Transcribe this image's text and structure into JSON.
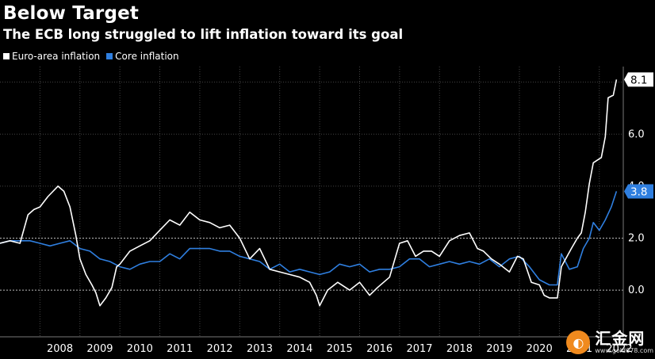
{
  "header": {
    "title": "Below Target",
    "subtitle": "The ECB long struggled to lift inflation toward its goal"
  },
  "watermark": {
    "name": "汇金网",
    "url": "www.gold678.com"
  },
  "colors": {
    "headline": "#ffffff",
    "core": "#2f7fe0"
  },
  "chart_data": {
    "type": "line",
    "title": "Below Target",
    "subtitle": "The ECB long struggled to lift inflation toward its goal",
    "xlabel": "",
    "ylabel": "",
    "xlim": [
      2007.0,
      2022.6
    ],
    "ylim": [
      -1.4,
      8.6
    ],
    "x_ticks": [
      "2008",
      "2009",
      "2010",
      "2011",
      "2012",
      "2013",
      "2014",
      "2015",
      "2016",
      "2017",
      "2018",
      "2019",
      "2020",
      "2021",
      "2022"
    ],
    "y_ticks": [
      0.0,
      2.0,
      4.0,
      6.0
    ],
    "y_tick_labels": [
      "0.0",
      "2.0",
      "4.0",
      "6.0"
    ],
    "reference_lines": [
      2.0,
      0.0
    ],
    "legend": {
      "placement": "top-left"
    },
    "series": [
      {
        "name": "Euro-area inflation",
        "color": "#ffffff",
        "last_label": "8.1",
        "points": [
          [
            2007.0,
            1.8
          ],
          [
            2007.25,
            1.9
          ],
          [
            2007.5,
            1.8
          ],
          [
            2007.7,
            2.9
          ],
          [
            2007.85,
            3.1
          ],
          [
            2008.0,
            3.2
          ],
          [
            2008.2,
            3.6
          ],
          [
            2008.45,
            4.0
          ],
          [
            2008.6,
            3.8
          ],
          [
            2008.75,
            3.2
          ],
          [
            2008.9,
            2.1
          ],
          [
            2009.0,
            1.2
          ],
          [
            2009.15,
            0.6
          ],
          [
            2009.3,
            0.2
          ],
          [
            2009.4,
            -0.1
          ],
          [
            2009.5,
            -0.6
          ],
          [
            2009.65,
            -0.3
          ],
          [
            2009.8,
            0.1
          ],
          [
            2009.92,
            0.9
          ],
          [
            2010.0,
            1.0
          ],
          [
            2010.25,
            1.5
          ],
          [
            2010.5,
            1.7
          ],
          [
            2010.75,
            1.9
          ],
          [
            2011.0,
            2.3
          ],
          [
            2011.25,
            2.7
          ],
          [
            2011.5,
            2.5
          ],
          [
            2011.75,
            3.0
          ],
          [
            2012.0,
            2.7
          ],
          [
            2012.25,
            2.6
          ],
          [
            2012.5,
            2.4
          ],
          [
            2012.75,
            2.5
          ],
          [
            2013.0,
            2.0
          ],
          [
            2013.25,
            1.2
          ],
          [
            2013.5,
            1.6
          ],
          [
            2013.75,
            0.8
          ],
          [
            2014.0,
            0.7
          ],
          [
            2014.25,
            0.6
          ],
          [
            2014.5,
            0.5
          ],
          [
            2014.75,
            0.3
          ],
          [
            2014.92,
            -0.2
          ],
          [
            2015.0,
            -0.6
          ],
          [
            2015.2,
            0.0
          ],
          [
            2015.45,
            0.3
          ],
          [
            2015.75,
            0.0
          ],
          [
            2016.0,
            0.3
          ],
          [
            2016.25,
            -0.2
          ],
          [
            2016.45,
            0.1
          ],
          [
            2016.75,
            0.5
          ],
          [
            2017.0,
            1.8
          ],
          [
            2017.2,
            1.9
          ],
          [
            2017.4,
            1.3
          ],
          [
            2017.6,
            1.5
          ],
          [
            2017.8,
            1.5
          ],
          [
            2018.0,
            1.3
          ],
          [
            2018.25,
            1.9
          ],
          [
            2018.5,
            2.1
          ],
          [
            2018.75,
            2.2
          ],
          [
            2018.95,
            1.6
          ],
          [
            2019.1,
            1.5
          ],
          [
            2019.3,
            1.2
          ],
          [
            2019.5,
            1.0
          ],
          [
            2019.75,
            0.7
          ],
          [
            2019.95,
            1.3
          ],
          [
            2020.1,
            1.2
          ],
          [
            2020.3,
            0.3
          ],
          [
            2020.5,
            0.2
          ],
          [
            2020.62,
            -0.2
          ],
          [
            2020.75,
            -0.3
          ],
          [
            2020.95,
            -0.3
          ],
          [
            2021.05,
            0.9
          ],
          [
            2021.3,
            1.6
          ],
          [
            2021.45,
            2.0
          ],
          [
            2021.55,
            2.2
          ],
          [
            2021.65,
            3.0
          ],
          [
            2021.75,
            4.1
          ],
          [
            2021.85,
            4.9
          ],
          [
            2021.95,
            5.0
          ],
          [
            2022.05,
            5.1
          ],
          [
            2022.15,
            5.9
          ],
          [
            2022.22,
            7.4
          ],
          [
            2022.35,
            7.5
          ],
          [
            2022.43,
            8.1
          ]
        ]
      },
      {
        "name": "Core inflation",
        "color": "#2f7fe0",
        "last_label": "3.8",
        "points": [
          [
            2007.0,
            1.8
          ],
          [
            2007.25,
            1.9
          ],
          [
            2007.5,
            1.9
          ],
          [
            2007.75,
            1.9
          ],
          [
            2008.0,
            1.8
          ],
          [
            2008.25,
            1.7
          ],
          [
            2008.5,
            1.8
          ],
          [
            2008.75,
            1.9
          ],
          [
            2009.0,
            1.6
          ],
          [
            2009.25,
            1.5
          ],
          [
            2009.5,
            1.2
          ],
          [
            2009.75,
            1.1
          ],
          [
            2010.0,
            0.9
          ],
          [
            2010.25,
            0.8
          ],
          [
            2010.5,
            1.0
          ],
          [
            2010.75,
            1.1
          ],
          [
            2011.0,
            1.1
          ],
          [
            2011.25,
            1.4
          ],
          [
            2011.5,
            1.2
          ],
          [
            2011.75,
            1.6
          ],
          [
            2012.0,
            1.6
          ],
          [
            2012.25,
            1.6
          ],
          [
            2012.5,
            1.5
          ],
          [
            2012.75,
            1.5
          ],
          [
            2013.0,
            1.3
          ],
          [
            2013.25,
            1.2
          ],
          [
            2013.5,
            1.1
          ],
          [
            2013.75,
            0.8
          ],
          [
            2014.0,
            1.0
          ],
          [
            2014.25,
            0.7
          ],
          [
            2014.5,
            0.8
          ],
          [
            2014.75,
            0.7
          ],
          [
            2015.0,
            0.6
          ],
          [
            2015.25,
            0.7
          ],
          [
            2015.5,
            1.0
          ],
          [
            2015.75,
            0.9
          ],
          [
            2016.0,
            1.0
          ],
          [
            2016.25,
            0.7
          ],
          [
            2016.5,
            0.8
          ],
          [
            2016.75,
            0.8
          ],
          [
            2017.0,
            0.9
          ],
          [
            2017.25,
            1.2
          ],
          [
            2017.5,
            1.2
          ],
          [
            2017.75,
            0.9
          ],
          [
            2018.0,
            1.0
          ],
          [
            2018.25,
            1.1
          ],
          [
            2018.5,
            1.0
          ],
          [
            2018.75,
            1.1
          ],
          [
            2019.0,
            1.0
          ],
          [
            2019.25,
            1.2
          ],
          [
            2019.5,
            0.9
          ],
          [
            2019.75,
            1.2
          ],
          [
            2020.0,
            1.3
          ],
          [
            2020.25,
            0.9
          ],
          [
            2020.5,
            0.4
          ],
          [
            2020.75,
            0.2
          ],
          [
            2020.95,
            0.2
          ],
          [
            2021.05,
            1.4
          ],
          [
            2021.25,
            0.8
          ],
          [
            2021.45,
            0.9
          ],
          [
            2021.6,
            1.6
          ],
          [
            2021.75,
            2.0
          ],
          [
            2021.85,
            2.6
          ],
          [
            2022.0,
            2.3
          ],
          [
            2022.15,
            2.7
          ],
          [
            2022.3,
            3.2
          ],
          [
            2022.43,
            3.8
          ]
        ]
      }
    ]
  }
}
